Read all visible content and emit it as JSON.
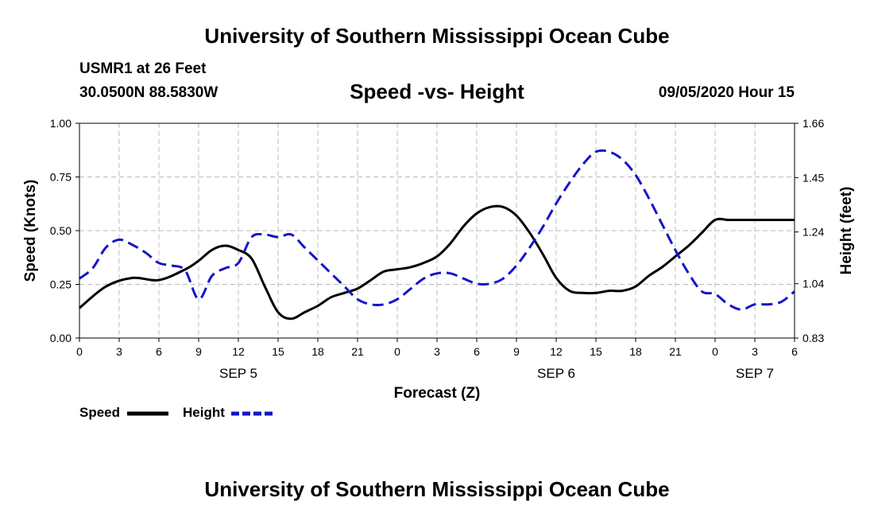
{
  "header": {
    "title": "University of Southern Mississippi Ocean Cube",
    "station": "USMR1 at 26 Feet",
    "coords": "30.0500N 88.5830W",
    "chart_title": "Speed -vs- Height",
    "datetime": "09/05/2020 Hour 15"
  },
  "footer": {
    "title": "University of Southern Mississippi Ocean Cube"
  },
  "legend": {
    "speed_label": "Speed",
    "height_label": "Height"
  },
  "colors": {
    "speed": "#000000",
    "height": "#1515c8",
    "grid": "#bbbbbb"
  },
  "chart_data": {
    "type": "line",
    "title": "Speed -vs- Height",
    "xlabel": "Forecast (Z)",
    "ylabel_left": "Speed (Knots)",
    "ylabel_right": "Height (feet)",
    "x_range": [
      0,
      54
    ],
    "x_ticks": [
      0,
      3,
      6,
      9,
      12,
      15,
      18,
      21,
      24,
      27,
      30,
      33,
      36,
      39,
      42,
      45,
      48,
      51,
      54
    ],
    "x_tick_labels": [
      "0",
      "3",
      "6",
      "9",
      "12",
      "15",
      "18",
      "21",
      "0",
      "3",
      "6",
      "9",
      "12",
      "15",
      "18",
      "21",
      "0",
      "3",
      "6"
    ],
    "day_labels": [
      {
        "x": 12,
        "label": "SEP 5"
      },
      {
        "x": 36,
        "label": "SEP 6"
      },
      {
        "x": 51,
        "label": "SEP 7"
      }
    ],
    "y_left_range": [
      0,
      1
    ],
    "y_left_ticks": [
      0,
      0.25,
      0.5,
      0.75,
      1.0
    ],
    "y_left_tick_labels": [
      "0.00",
      "0.25",
      "0.50",
      "0.75",
      "1.00"
    ],
    "y_right_range": [
      0.83,
      1.66
    ],
    "y_right_ticks": [
      0.83,
      1.04,
      1.24,
      1.45,
      1.66
    ],
    "y_right_tick_labels": [
      "0.83",
      "1.04",
      "1.24",
      "1.45",
      "1.66"
    ],
    "grid": true,
    "series": [
      {
        "name": "Speed",
        "axis": "left",
        "style": "solid",
        "x": [
          0,
          2,
          4,
          6,
          8,
          9,
          10,
          11,
          12,
          13,
          14,
          15,
          16,
          17,
          18,
          19,
          20,
          21,
          22,
          23,
          24,
          25,
          26,
          27,
          28,
          29,
          30,
          31,
          32,
          33,
          34,
          35,
          36,
          37,
          38,
          39,
          40,
          41,
          42,
          43,
          44,
          45,
          46,
          47,
          48,
          49,
          50,
          51,
          52,
          53,
          54
        ],
        "values": [
          0.14,
          0.24,
          0.28,
          0.27,
          0.32,
          0.36,
          0.41,
          0.43,
          0.41,
          0.37,
          0.24,
          0.12,
          0.09,
          0.12,
          0.15,
          0.19,
          0.21,
          0.23,
          0.27,
          0.31,
          0.32,
          0.33,
          0.35,
          0.38,
          0.44,
          0.52,
          0.58,
          0.61,
          0.61,
          0.57,
          0.49,
          0.39,
          0.28,
          0.22,
          0.21,
          0.21,
          0.22,
          0.22,
          0.24,
          0.29,
          0.33,
          0.38,
          0.43,
          0.49,
          0.55,
          0.55,
          0.55,
          0.55,
          0.55,
          0.55,
          0.55
        ]
      },
      {
        "name": "Height",
        "axis": "right",
        "style": "dashed",
        "x": [
          0,
          1,
          2,
          3,
          4,
          5,
          6,
          7,
          8,
          9,
          10,
          11,
          12,
          13,
          14,
          15,
          16,
          17,
          18,
          19,
          20,
          21,
          22,
          23,
          24,
          25,
          26,
          27,
          28,
          29,
          30,
          31,
          32,
          33,
          34,
          35,
          36,
          37,
          38,
          39,
          40,
          41,
          42,
          43,
          44,
          45,
          46,
          47,
          48,
          49,
          50,
          51,
          52,
          53,
          54
        ],
        "values": [
          1.06,
          1.1,
          1.18,
          1.21,
          1.19,
          1.16,
          1.12,
          1.11,
          1.09,
          0.98,
          1.07,
          1.1,
          1.12,
          1.22,
          1.23,
          1.22,
          1.23,
          1.18,
          1.13,
          1.08,
          1.03,
          0.98,
          0.96,
          0.96,
          0.98,
          1.02,
          1.06,
          1.08,
          1.08,
          1.06,
          1.04,
          1.04,
          1.06,
          1.11,
          1.18,
          1.26,
          1.35,
          1.43,
          1.5,
          1.55,
          1.55,
          1.52,
          1.46,
          1.37,
          1.27,
          1.17,
          1.08,
          1.01,
          1.0,
          0.96,
          0.94,
          0.96,
          0.96,
          0.97,
          1.01
        ]
      }
    ]
  }
}
